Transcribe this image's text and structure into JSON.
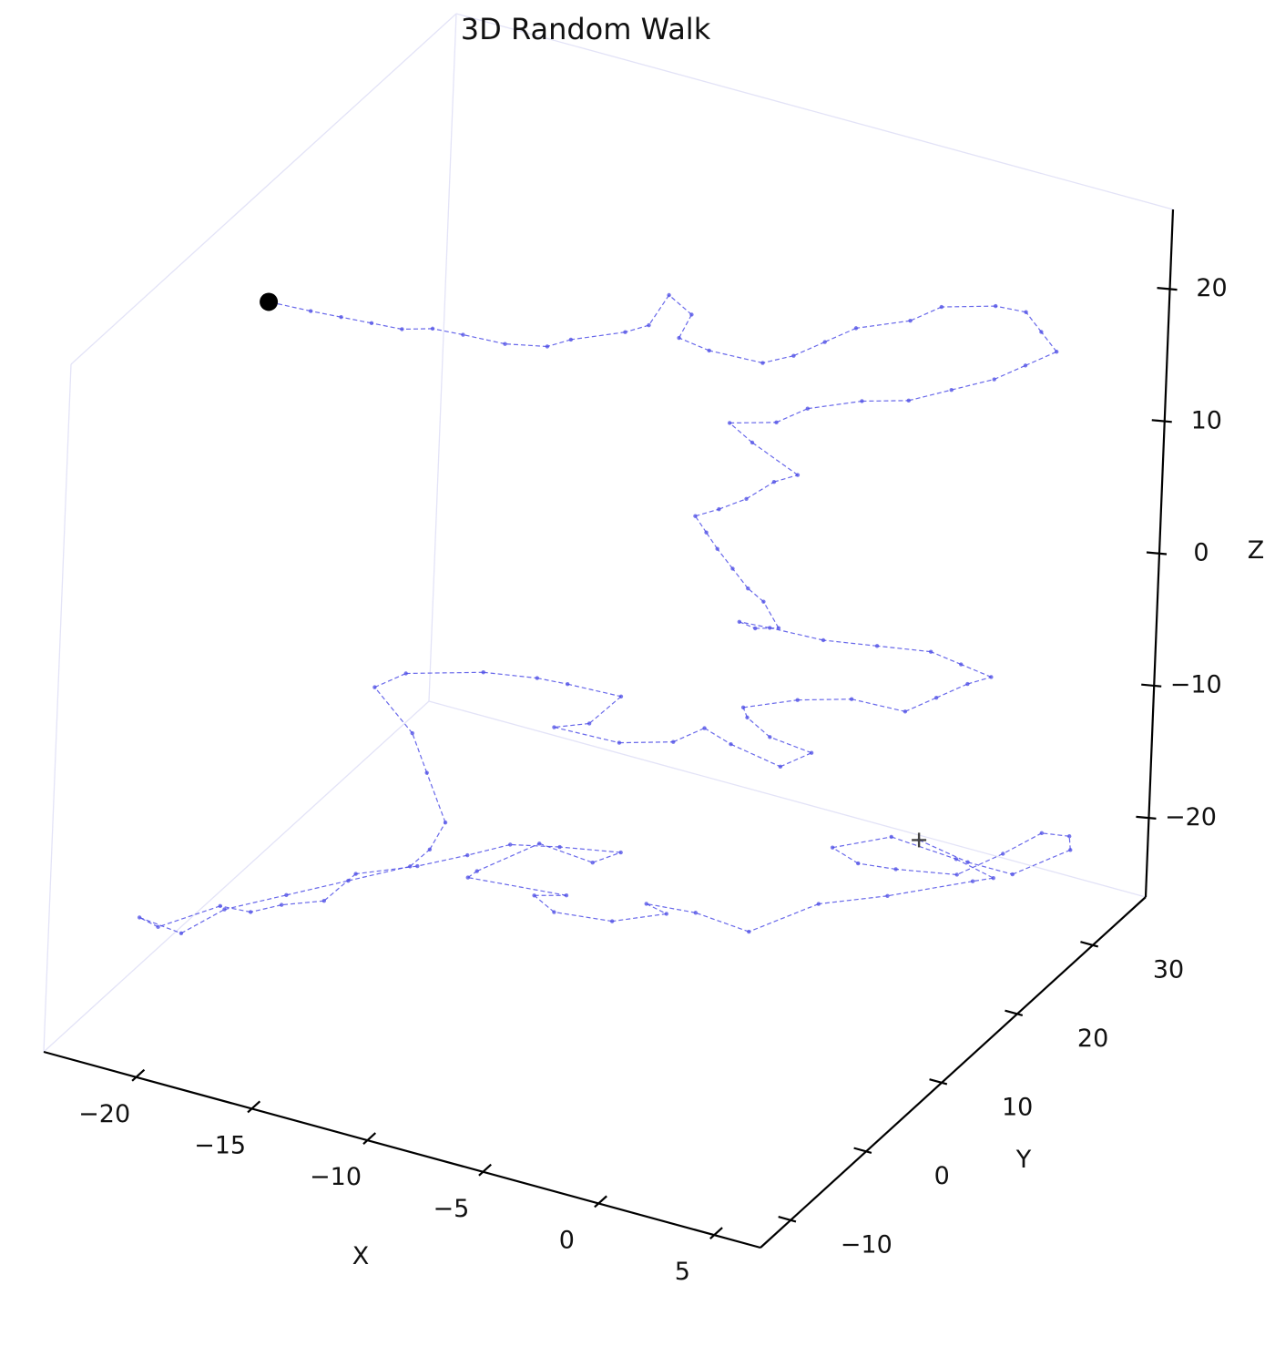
{
  "chart_data": {
    "type": "line3d",
    "title": "3D Random Walk",
    "xlabel": "X",
    "ylabel": "Y",
    "zlabel": "Z",
    "xlim": [
      -24,
      7
    ],
    "ylim": [
      -14,
      37
    ],
    "zlim": [
      -26,
      26
    ],
    "x_ticks": [
      {
        "value": -20,
        "label": "−20"
      },
      {
        "value": -15,
        "label": "−15"
      },
      {
        "value": -10,
        "label": "−10"
      },
      {
        "value": -5,
        "label": "−5"
      },
      {
        "value": 0,
        "label": "0"
      },
      {
        "value": 5,
        "label": "5"
      }
    ],
    "y_ticks": [
      {
        "value": -10,
        "label": "−10"
      },
      {
        "value": 0,
        "label": "0"
      },
      {
        "value": 10,
        "label": "10"
      },
      {
        "value": 20,
        "label": "20"
      },
      {
        "value": 30,
        "label": "30"
      }
    ],
    "z_ticks": [
      {
        "value": -20,
        "label": "−20"
      },
      {
        "value": -10,
        "label": "−10"
      },
      {
        "value": 0,
        "label": "0"
      },
      {
        "value": 10,
        "label": "10"
      },
      {
        "value": 20,
        "label": "20"
      }
    ],
    "grid": false,
    "series": [
      {
        "style": "blue dashed line with small markers",
        "color": "#4d4de6",
        "start_marker": "+",
        "end_marker": "large black dot",
        "end_color": "#000000",
        "points": [
          [
            2.5,
            20,
            -15
          ],
          [
            4,
            22,
            -17
          ],
          [
            5,
            25,
            -19
          ],
          [
            6.5,
            28,
            -18
          ],
          [
            5.5,
            31,
            -19
          ],
          [
            4,
            32,
            -20
          ],
          [
            3,
            30,
            -21
          ],
          [
            2,
            27,
            -21.5
          ],
          [
            0,
            25,
            -21
          ],
          [
            -1,
            23,
            -20
          ],
          [
            -1.5,
            21,
            -18
          ],
          [
            1,
            21,
            -16
          ],
          [
            3.5,
            22,
            -17
          ],
          [
            4.5,
            24,
            -19
          ],
          [
            3,
            26,
            -21
          ],
          [
            0,
            24,
            -22.5
          ],
          [
            -2,
            21,
            -22.5
          ],
          [
            -4,
            18,
            -24
          ],
          [
            -6,
            17,
            -23
          ],
          [
            -7.5,
            15,
            -22
          ],
          [
            -6,
            13,
            -21
          ],
          [
            -8,
            12,
            -22
          ],
          [
            -10.5,
            12,
            -22.5
          ],
          [
            -12,
            14,
            -23
          ],
          [
            -10,
            12,
            -21
          ],
          [
            -13,
            8,
            -19
          ],
          [
            -12,
            6,
            -17
          ],
          [
            -10,
            8,
            -15
          ],
          [
            -8,
            9,
            -16
          ],
          [
            -6.5,
            8,
            -14
          ],
          [
            -8.5,
            6,
            -13.5
          ],
          [
            -10,
            4,
            -13
          ],
          [
            -11.5,
            3,
            -14
          ],
          [
            -13,
            1,
            -14.5
          ],
          [
            -15,
            -1,
            -15
          ],
          [
            -16,
            -2,
            -17
          ],
          [
            -17.5,
            -3,
            -17.5
          ],
          [
            -18.5,
            -4,
            -18
          ],
          [
            -19.5,
            -5,
            -17.5
          ],
          [
            -21.5,
            -7,
            -19
          ],
          [
            -22,
            -8,
            -18
          ],
          [
            -20.5,
            -7,
            -19
          ],
          [
            -19,
            -6,
            -17
          ],
          [
            -17,
            -4,
            -16
          ],
          [
            -15,
            -2,
            -15
          ],
          [
            -13,
            0,
            -14
          ],
          [
            -12.5,
            1,
            -13
          ],
          [
            -12.5,
            3,
            -12
          ],
          [
            -14,
            5,
            -10
          ],
          [
            -15,
            6,
            -8
          ],
          [
            -17,
            7,
            -6
          ],
          [
            -16,
            8,
            -5
          ],
          [
            -13,
            9,
            -4
          ],
          [
            -11,
            10,
            -4
          ],
          [
            -10,
            11,
            -4.5
          ],
          [
            -8,
            12,
            -5
          ],
          [
            -9,
            11,
            -7
          ],
          [
            -10.5,
            11,
            -8
          ],
          [
            -8,
            12,
            -8.5
          ],
          [
            -6,
            13,
            -8
          ],
          [
            -5,
            14,
            -7
          ],
          [
            -4,
            14.5,
            -8
          ],
          [
            -2,
            15,
            -9
          ],
          [
            -1,
            16,
            -8
          ],
          [
            -2.5,
            15,
            -7
          ],
          [
            -3.5,
            15,
            -6
          ],
          [
            -4,
            16,
            -6
          ],
          [
            -2,
            17,
            -5
          ],
          [
            0,
            18,
            -4.5
          ],
          [
            2,
            19,
            -5
          ],
          [
            3,
            20,
            -4
          ],
          [
            4,
            21,
            -3
          ],
          [
            5,
            21,
            -2
          ],
          [
            4,
            20,
            -1
          ],
          [
            3,
            19,
            0
          ],
          [
            1,
            18,
            0
          ],
          [
            -1,
            17,
            0
          ],
          [
            -3,
            16,
            0.5
          ],
          [
            -4,
            15,
            1
          ],
          [
            -3,
            14,
            1.5
          ],
          [
            -2,
            14,
            2
          ],
          [
            -3,
            15,
            3
          ],
          [
            -4,
            16,
            3
          ],
          [
            -5,
            17,
            3.5
          ],
          [
            -6,
            18,
            4
          ],
          [
            -6.5,
            18,
            5
          ],
          [
            -7,
            18,
            6
          ],
          [
            -6,
            18,
            7
          ],
          [
            -5,
            18.5,
            8
          ],
          [
            -4,
            19,
            9.5
          ],
          [
            -3,
            19,
            10.5
          ],
          [
            -5,
            19,
            12
          ],
          [
            -6,
            19,
            13
          ],
          [
            -4,
            19,
            14
          ],
          [
            -3,
            20,
            15
          ],
          [
            -1,
            21,
            16
          ],
          [
            1,
            21,
            17
          ],
          [
            2.5,
            22,
            18
          ],
          [
            4,
            23,
            19
          ],
          [
            5,
            24,
            20
          ],
          [
            6,
            25,
            21
          ],
          [
            5,
            26,
            21.5
          ],
          [
            4,
            27,
            22
          ],
          [
            3,
            26,
            22.5
          ],
          [
            1,
            25,
            22
          ],
          [
            0,
            24,
            21
          ],
          [
            -2,
            23,
            20
          ],
          [
            -3,
            22,
            19
          ],
          [
            -4,
            21,
            18
          ],
          [
            -5,
            20,
            17.5
          ],
          [
            -7,
            19,
            18
          ],
          [
            -8,
            18,
            19
          ],
          [
            -7.5,
            18,
            21
          ],
          [
            -8.5,
            18,
            22
          ],
          [
            -9,
            17,
            20
          ],
          [
            -10,
            17,
            19
          ],
          [
            -12,
            16,
            18
          ],
          [
            -13,
            16,
            17
          ],
          [
            -14.5,
            15,
            17
          ],
          [
            -16,
            14,
            17.5
          ],
          [
            -17,
            13,
            18
          ],
          [
            -18,
            12,
            18
          ],
          [
            -19,
            11,
            18.5
          ],
          [
            -20,
            10,
            19
          ],
          [
            -21,
            9,
            19.5
          ],
          [
            -22.5,
            8,
            20
          ]
        ]
      }
    ]
  }
}
